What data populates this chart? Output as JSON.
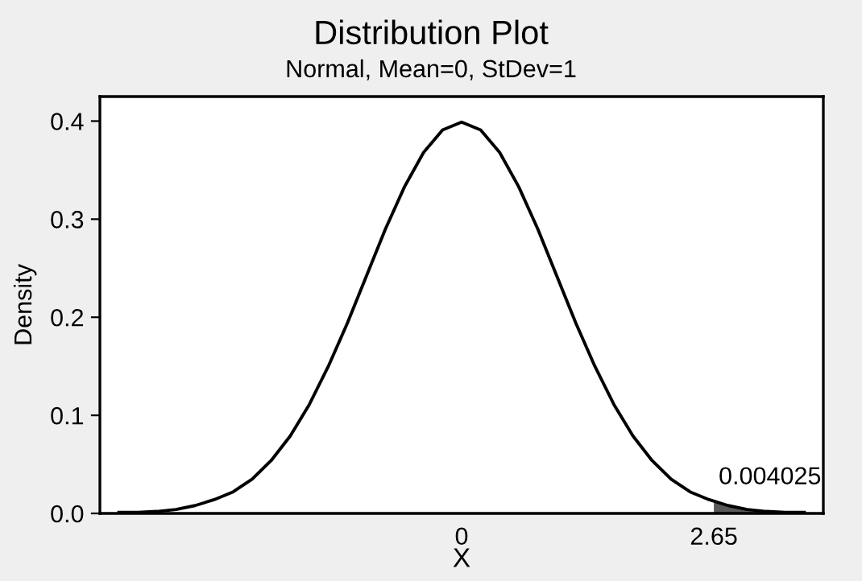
{
  "chart_data": {
    "type": "line",
    "title": "Distribution Plot",
    "subtitle": "Normal, Mean=0, StDev=1",
    "xlabel": "X",
    "ylabel": "Density",
    "series": [
      {
        "color": "#000000",
        "x": [
          -3.6,
          -3.4,
          -3.2,
          -3.0,
          -2.8,
          -2.6,
          -2.4,
          -2.2,
          -2.0,
          -1.8,
          -1.6,
          -1.4,
          -1.2,
          -1.0,
          -0.8,
          -0.6,
          -0.4,
          -0.2,
          0,
          0.2,
          0.4,
          0.6,
          0.8,
          1.0,
          1.2,
          1.4,
          1.6,
          1.8,
          2.0,
          2.2,
          2.4,
          2.6,
          2.8,
          3.0,
          3.2,
          3.4,
          3.6
        ],
        "values": [
          0.001,
          0.001,
          0.002,
          0.004,
          0.008,
          0.014,
          0.022,
          0.035,
          0.054,
          0.079,
          0.111,
          0.15,
          0.194,
          0.242,
          0.29,
          0.333,
          0.368,
          0.391,
          0.399,
          0.391,
          0.368,
          0.333,
          0.29,
          0.242,
          0.194,
          0.15,
          0.111,
          0.079,
          0.054,
          0.035,
          0.022,
          0.014,
          0.008,
          0.004,
          0.002,
          0.001,
          0.001
        ]
      },
      {
        "type": "area",
        "color": "#595959",
        "x": [
          2.65,
          2.8,
          3.0,
          3.2,
          3.4,
          3.6
        ],
        "values": [
          0.012,
          0.008,
          0.004,
          0.002,
          0.001,
          0.001
        ]
      }
    ],
    "annotations": [
      {
        "text": "0.004025",
        "x": 2.7,
        "y": 0.02
      }
    ],
    "xlim": [
      -3.8,
      3.8
    ],
    "xticks": [
      0,
      2.65
    ],
    "ylim": [
      0,
      0.425
    ],
    "yticks": [
      {
        "value": 0,
        "label": "0.0"
      },
      {
        "value": 0.1,
        "label": "0.1"
      },
      {
        "value": 0.2,
        "label": "0.2"
      },
      {
        "value": 0.3,
        "label": "0.3"
      },
      {
        "value": 0.4,
        "label": "0.4"
      }
    ],
    "grid": false,
    "legend": false
  }
}
